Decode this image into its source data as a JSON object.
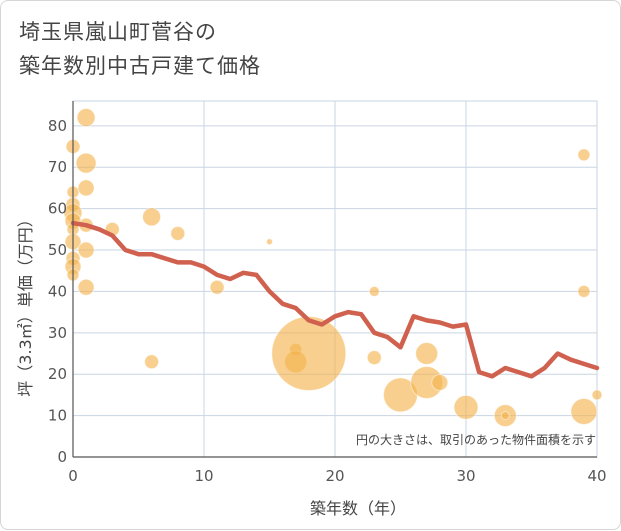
{
  "title_line1": "埼玉県嵐山町菅谷の",
  "title_line2": "築年数別中古戸建て価格",
  "chart_data": {
    "type": "scatter",
    "xlabel": "築年数（年）",
    "ylabel": "坪（3.3㎡）単価（万円）",
    "xlim": [
      0,
      40
    ],
    "ylim": [
      0,
      86
    ],
    "xticks": [
      0,
      10,
      20,
      30,
      40
    ],
    "yticks": [
      0,
      10,
      20,
      30,
      40,
      50,
      60,
      70,
      80
    ],
    "grid": true,
    "note": "円の大きさは、取引のあった物件面積を示す",
    "colors": {
      "bubble": "#f4b24a",
      "line": "#d0614f",
      "grid": "#c9d5e3",
      "axis": "#555555"
    },
    "scatter": [
      {
        "x": 0,
        "y": 75,
        "s": 7
      },
      {
        "x": 0,
        "y": 64,
        "s": 6
      },
      {
        "x": 0,
        "y": 61,
        "s": 7
      },
      {
        "x": 0,
        "y": 59,
        "s": 9
      },
      {
        "x": 0,
        "y": 57,
        "s": 8
      },
      {
        "x": 0,
        "y": 55,
        "s": 6
      },
      {
        "x": 0,
        "y": 52,
        "s": 8
      },
      {
        "x": 0,
        "y": 48,
        "s": 7
      },
      {
        "x": 0,
        "y": 46,
        "s": 8
      },
      {
        "x": 0,
        "y": 44,
        "s": 6
      },
      {
        "x": 1,
        "y": 82,
        "s": 9
      },
      {
        "x": 1,
        "y": 71,
        "s": 10
      },
      {
        "x": 1,
        "y": 65,
        "s": 8
      },
      {
        "x": 1,
        "y": 56,
        "s": 7
      },
      {
        "x": 1,
        "y": 50,
        "s": 8
      },
      {
        "x": 1,
        "y": 41,
        "s": 8
      },
      {
        "x": 3,
        "y": 55,
        "s": 7
      },
      {
        "x": 6,
        "y": 58,
        "s": 9
      },
      {
        "x": 6,
        "y": 23,
        "s": 7
      },
      {
        "x": 8,
        "y": 54,
        "s": 7
      },
      {
        "x": 11,
        "y": 41,
        "s": 7
      },
      {
        "x": 15,
        "y": 52,
        "s": 3
      },
      {
        "x": 17,
        "y": 26,
        "s": 6
      },
      {
        "x": 17,
        "y": 23,
        "s": 11
      },
      {
        "x": 18,
        "y": 25,
        "s": 37
      },
      {
        "x": 23,
        "y": 40,
        "s": 5
      },
      {
        "x": 23,
        "y": 24,
        "s": 7
      },
      {
        "x": 25,
        "y": 15,
        "s": 17
      },
      {
        "x": 27,
        "y": 25,
        "s": 11
      },
      {
        "x": 27,
        "y": 18,
        "s": 16
      },
      {
        "x": 28,
        "y": 18,
        "s": 8
      },
      {
        "x": 30,
        "y": 12,
        "s": 12
      },
      {
        "x": 33,
        "y": 10,
        "s": 11
      },
      {
        "x": 33,
        "y": 10,
        "s": 4
      },
      {
        "x": 39,
        "y": 73,
        "s": 6
      },
      {
        "x": 39,
        "y": 40,
        "s": 6
      },
      {
        "x": 39,
        "y": 11,
        "s": 13
      },
      {
        "x": 40,
        "y": 15,
        "s": 5
      }
    ],
    "line": {
      "x": [
        0,
        1,
        2,
        3,
        4,
        5,
        6,
        7,
        8,
        9,
        10,
        11,
        12,
        13,
        14,
        15,
        16,
        17,
        18,
        19,
        20,
        21,
        22,
        23,
        24,
        25,
        26,
        27,
        28,
        29,
        30,
        31,
        32,
        33,
        34,
        35,
        36,
        37,
        38,
        39,
        40
      ],
      "y": [
        56.5,
        56,
        55,
        53.5,
        50,
        49,
        49,
        48,
        47,
        47,
        46,
        44,
        43,
        44.5,
        44,
        40,
        37,
        36,
        33,
        32,
        34,
        35,
        34.5,
        30,
        29,
        26.5,
        34,
        33,
        32.5,
        31.5,
        32,
        20.5,
        19.5,
        21.5,
        20.5,
        19.5,
        21.5,
        25,
        23.5,
        22.5,
        21.5
      ]
    }
  }
}
